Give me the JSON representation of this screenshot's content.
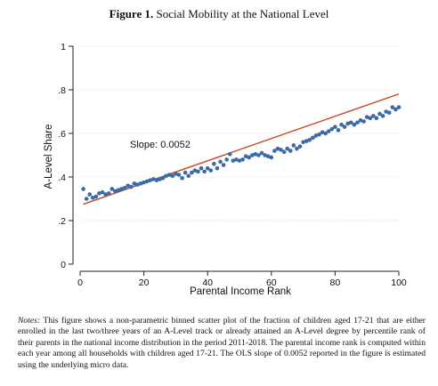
{
  "figure": {
    "label": "Figure 1.",
    "title": "Social Mobility at the National Level"
  },
  "notes": {
    "label": "Notes:",
    "text": "This figure shows a non-parametric binned scatter plot of the fraction of children aged 17-21 that are either enrolled in the last two/three years of an A-Level track or already attained an A-Level degree by percentile rank of their parents in the national income distribution in the period 2011-2018. The parental income rank is computed within each year among all households with children aged 17-21. The OLS slope of 0.0052 reported in the figure is estimated using the underlying micro data."
  },
  "chart_data": {
    "type": "scatter",
    "xlabel": "Parental Income Rank",
    "ylabel": "A-Level Share",
    "xlim": [
      0,
      100
    ],
    "ylim": [
      0,
      1
    ],
    "xticks": [
      0,
      20,
      40,
      60,
      80,
      100
    ],
    "yticks": [
      0,
      0.2,
      0.4,
      0.6,
      0.8,
      1
    ],
    "ytick_labels": [
      "0",
      ".2",
      ".4",
      ".6",
      ".8",
      "1"
    ],
    "grid": true,
    "annotation": "Slope: 0.0052",
    "colors": {
      "points": "#3b6aa6",
      "fit_line": "#c8502a",
      "grid": "#d9d9d9"
    },
    "fit_line": {
      "x": [
        1,
        100
      ],
      "y": [
        0.275,
        0.781
      ]
    },
    "series": [
      {
        "x": [
          1,
          2,
          3,
          4,
          5,
          6,
          7,
          8,
          9,
          10,
          11,
          12,
          13,
          14,
          15,
          16,
          17,
          18,
          19,
          20,
          21,
          22,
          23,
          24,
          25,
          26,
          27,
          28,
          29,
          30,
          31,
          32,
          33,
          34,
          35,
          36,
          37,
          38,
          39,
          40,
          41,
          42,
          43,
          44,
          45,
          46,
          47,
          48,
          49,
          50,
          51,
          52,
          53,
          54,
          55,
          56,
          57,
          58,
          59,
          60,
          61,
          62,
          63,
          64,
          65,
          66,
          67,
          68,
          69,
          70,
          71,
          72,
          73,
          74,
          75,
          76,
          77,
          78,
          79,
          80,
          81,
          82,
          83,
          84,
          85,
          86,
          87,
          88,
          89,
          90,
          91,
          92,
          93,
          94,
          95,
          96,
          97,
          98,
          99,
          100
        ],
        "y": [
          0.345,
          0.3,
          0.32,
          0.305,
          0.31,
          0.325,
          0.33,
          0.32,
          0.325,
          0.345,
          0.335,
          0.34,
          0.345,
          0.35,
          0.36,
          0.355,
          0.37,
          0.365,
          0.37,
          0.375,
          0.38,
          0.385,
          0.39,
          0.385,
          0.39,
          0.395,
          0.405,
          0.41,
          0.405,
          0.415,
          0.41,
          0.395,
          0.42,
          0.405,
          0.42,
          0.43,
          0.425,
          0.44,
          0.425,
          0.44,
          0.43,
          0.46,
          0.44,
          0.47,
          0.455,
          0.48,
          0.505,
          0.475,
          0.48,
          0.475,
          0.48,
          0.495,
          0.49,
          0.5,
          0.505,
          0.5,
          0.51,
          0.5,
          0.495,
          0.49,
          0.52,
          0.53,
          0.525,
          0.515,
          0.53,
          0.52,
          0.545,
          0.53,
          0.54,
          0.56,
          0.565,
          0.57,
          0.58,
          0.59,
          0.595,
          0.605,
          0.6,
          0.61,
          0.62,
          0.63,
          0.615,
          0.64,
          0.63,
          0.645,
          0.65,
          0.64,
          0.65,
          0.66,
          0.655,
          0.675,
          0.67,
          0.68,
          0.67,
          0.69,
          0.68,
          0.7,
          0.695,
          0.72,
          0.71,
          0.72
        ]
      }
    ]
  }
}
